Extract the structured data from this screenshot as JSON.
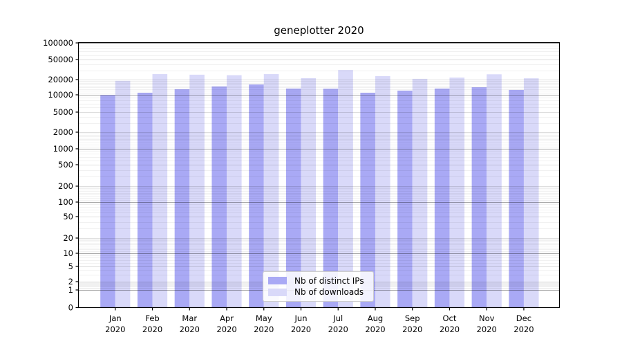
{
  "chart_data": {
    "type": "bar",
    "title": "geneplotter 2020",
    "categories": [
      "Jan",
      "Feb",
      "Mar",
      "Apr",
      "May",
      "Jun",
      "Jul",
      "Aug",
      "Sep",
      "Oct",
      "Nov",
      "Dec"
    ],
    "category_year": "2020",
    "series": [
      {
        "name": "Nb of distinct IPs",
        "color": "#a9a9f5",
        "values": [
          9900,
          11000,
          12900,
          14600,
          16000,
          13300,
          13200,
          11000,
          12100,
          13300,
          14100,
          12500
        ]
      },
      {
        "name": "Nb of downloads",
        "color": "#d9d9f9",
        "values": [
          18900,
          25700,
          25000,
          24400,
          25700,
          21300,
          31000,
          23400,
          20700,
          21900,
          25500,
          21200
        ]
      }
    ],
    "y_ticks": [
      0,
      1,
      2,
      5,
      10,
      20,
      50,
      100,
      200,
      500,
      1000,
      2000,
      5000,
      10000,
      20000,
      50000,
      100000
    ],
    "y_scale": "log-like",
    "ylim": [
      0,
      100000
    ],
    "grid": true,
    "legend_position": "lower-center",
    "axis_color": "#000000",
    "grid_major_color": "#aaaaaa",
    "grid_minor_color": "#e7e7e7"
  }
}
